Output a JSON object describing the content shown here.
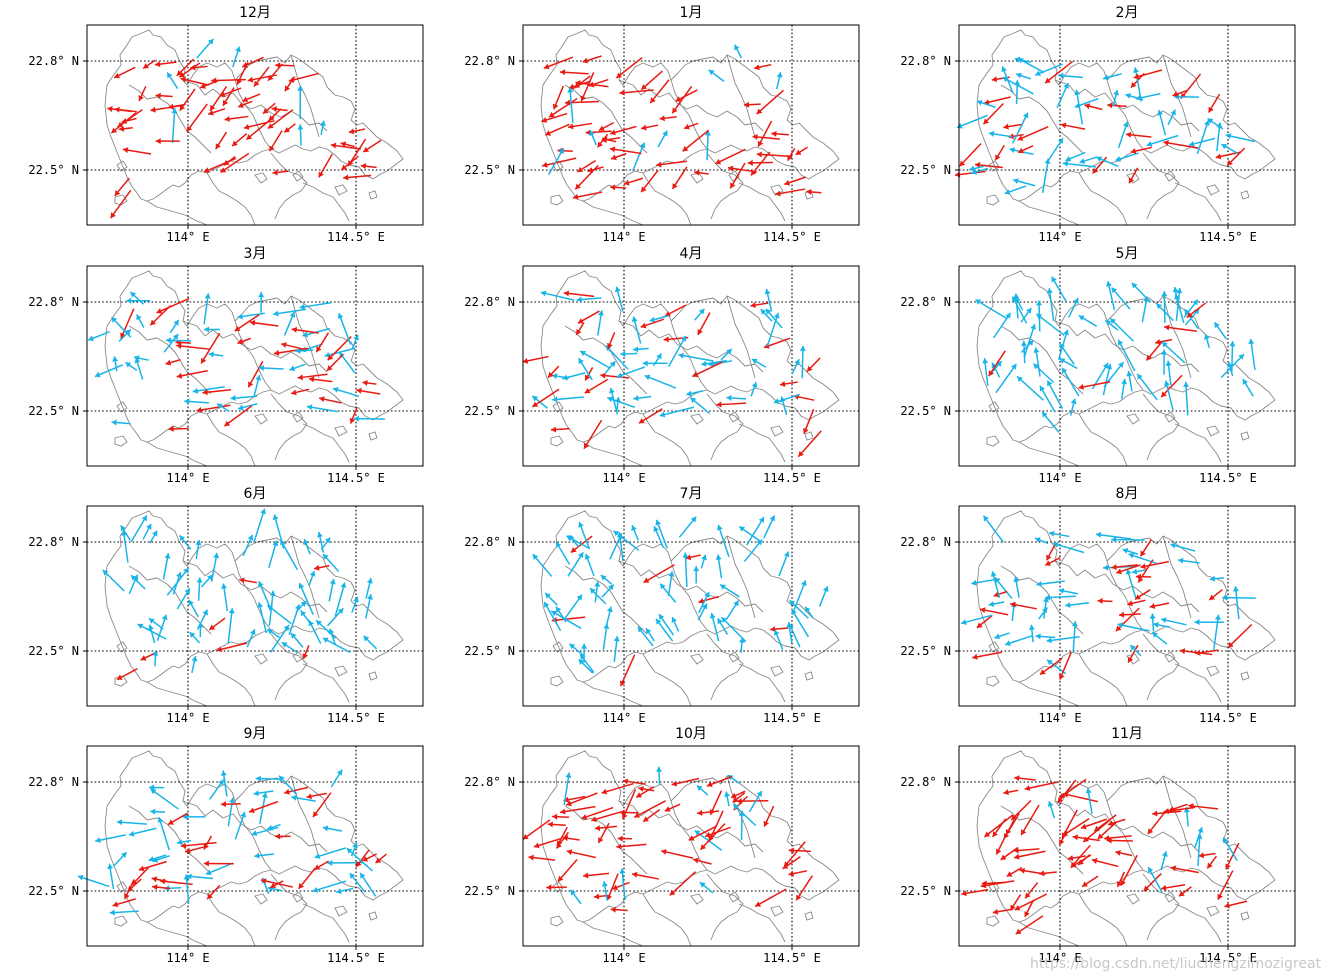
{
  "figure": {
    "month_suffix": "月",
    "longitude_labels": [
      "114° E",
      "114.5° E"
    ],
    "latitude_labels": [
      "22.8° N",
      "22.5° N"
    ],
    "colors": {
      "arrow_cool": "#18b4e8",
      "arrow_warm": "#e81a12",
      "coastline": "#888888",
      "grid": "#000000"
    },
    "panels": [
      {
        "title": "12月",
        "dominant": "warm"
      },
      {
        "title": "1月",
        "dominant": "warm"
      },
      {
        "title": "2月",
        "dominant": "mixed"
      },
      {
        "title": "3月",
        "dominant": "mixed"
      },
      {
        "title": "4月",
        "dominant": "mixed"
      },
      {
        "title": "5月",
        "dominant": "cool"
      },
      {
        "title": "6月",
        "dominant": "cool"
      },
      {
        "title": "7月",
        "dominant": "cool"
      },
      {
        "title": "8月",
        "dominant": "mixed"
      },
      {
        "title": "9月",
        "dominant": "mixed"
      },
      {
        "title": "10月",
        "dominant": "warm"
      },
      {
        "title": "11月",
        "dominant": "warm"
      }
    ]
  },
  "watermark": "https://blog.csdn.net/liuchengzimozigreat"
}
